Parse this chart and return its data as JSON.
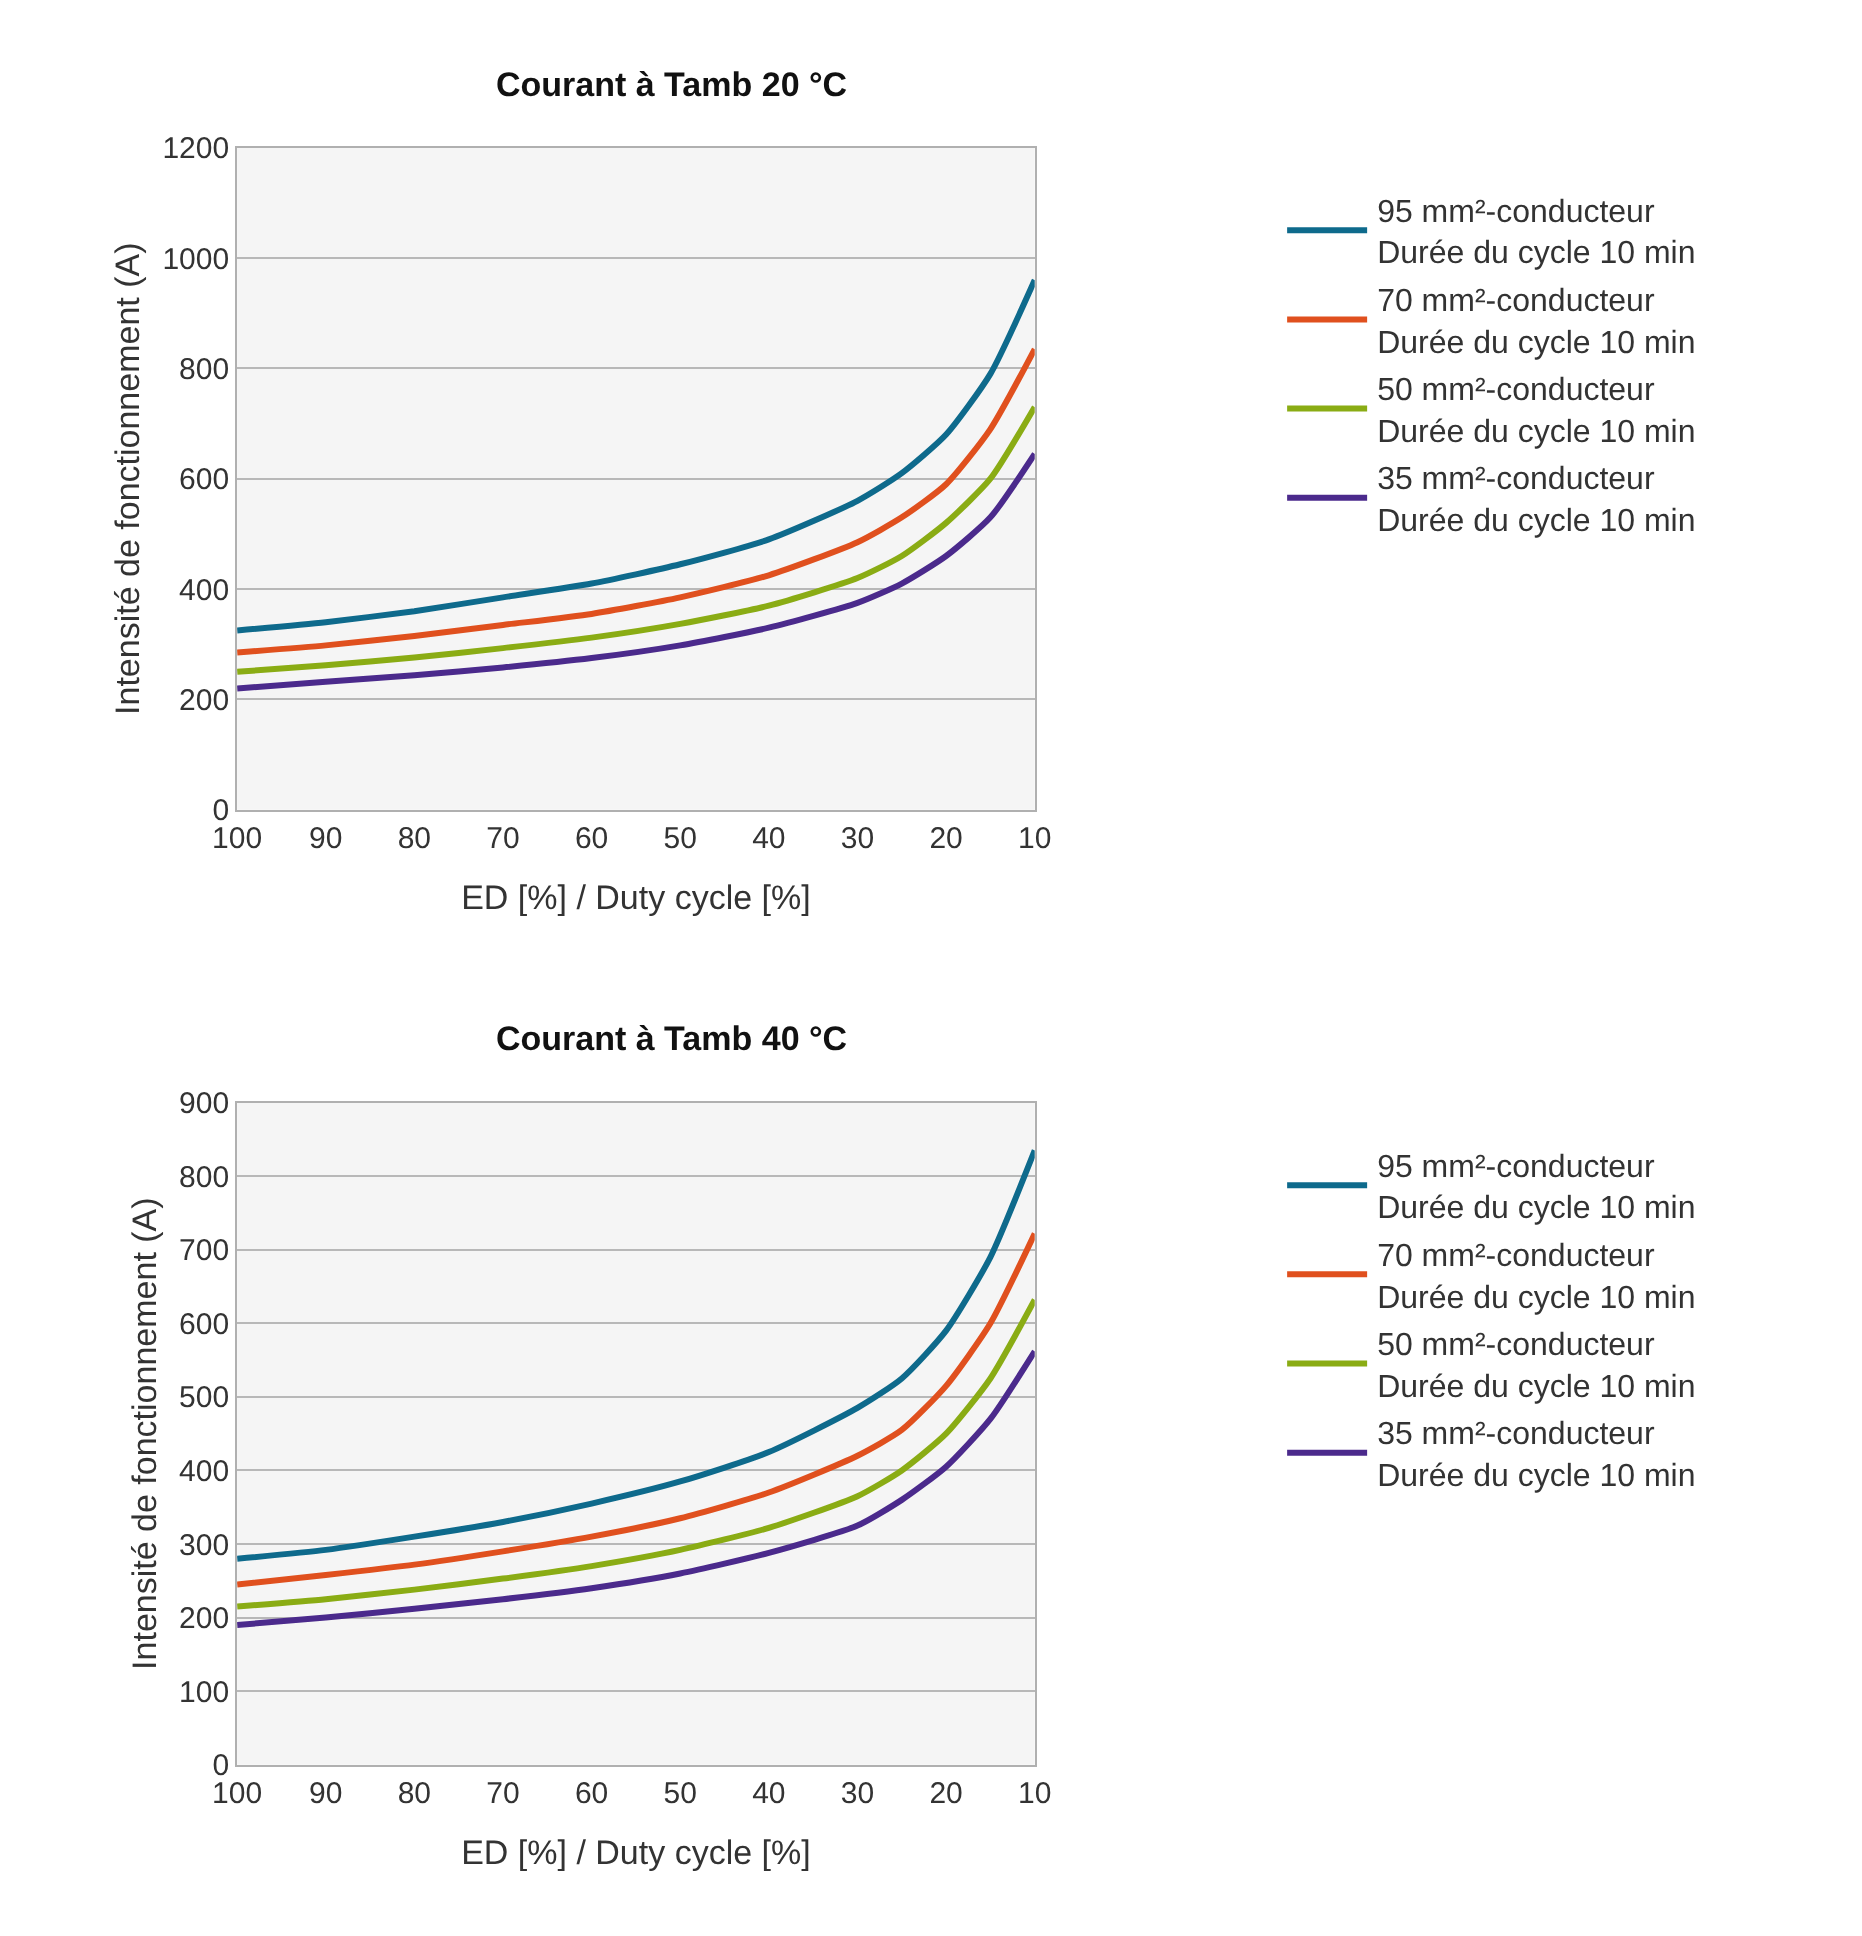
{
  "chart_data": [
    {
      "type": "line",
      "title": "Courant à Tamb 20 °C",
      "xlabel": "ED [%] / Duty cycle [%]",
      "ylabel": "Intensité de fonctionnement (A)",
      "x": [
        100,
        90,
        80,
        70,
        60,
        50,
        40,
        30,
        25,
        20,
        15,
        10
      ],
      "xlim": [
        100,
        10
      ],
      "xticks": [
        100,
        90,
        80,
        70,
        60,
        50,
        40,
        30,
        20,
        10
      ],
      "ylim": [
        0,
        1200
      ],
      "yticks": [
        0,
        200,
        400,
        600,
        800,
        1000,
        1200
      ],
      "grid": "y",
      "legend": "right",
      "marker": "none",
      "line_style": "solid",
      "series": [
        {
          "name": "95 mm²-conducteur\nDurée du cycle 10 min",
          "color": "#0e6a8c",
          "values": [
            325,
            340,
            360,
            385,
            410,
            445,
            490,
            560,
            610,
            680,
            790,
            960
          ]
        },
        {
          "name": "70 mm²-conducteur\nDurée du cycle 10 min",
          "color": "#e0501e",
          "values": [
            285,
            298,
            315,
            335,
            355,
            385,
            425,
            485,
            530,
            590,
            690,
            835
          ]
        },
        {
          "name": "50 mm²-conducteur\nDurée du cycle 10 min",
          "color": "#8aac14",
          "values": [
            250,
            262,
            276,
            293,
            312,
            337,
            370,
            420,
            460,
            520,
            600,
            730
          ]
        },
        {
          "name": "35 mm²-conducteur\nDurée du cycle 10 min",
          "color": "#4b2a8c",
          "values": [
            220,
            232,
            244,
            258,
            275,
            298,
            330,
            375,
            410,
            460,
            530,
            645
          ]
        }
      ]
    },
    {
      "type": "line",
      "title": "Courant à Tamb 40 °C",
      "xlabel": "ED [%] / Duty cycle [%]",
      "ylabel": "Intensité de fonctionnement (A)",
      "x": [
        100,
        90,
        80,
        70,
        60,
        50,
        40,
        30,
        25,
        20,
        15,
        10
      ],
      "xlim": [
        100,
        10
      ],
      "xticks": [
        100,
        90,
        80,
        70,
        60,
        50,
        40,
        30,
        20,
        10
      ],
      "ylim": [
        0,
        900
      ],
      "yticks": [
        0,
        100,
        200,
        300,
        400,
        500,
        600,
        700,
        800,
        900
      ],
      "grid": "y",
      "legend": "right",
      "marker": "none",
      "line_style": "solid",
      "series": [
        {
          "name": "95 mm²-conducteur\nDurée du cycle 10 min",
          "color": "#0e6a8c",
          "values": [
            280,
            292,
            310,
            330,
            355,
            385,
            425,
            485,
            525,
            590,
            690,
            835
          ]
        },
        {
          "name": "70 mm²-conducteur\nDurée du cycle 10 min",
          "color": "#e0501e",
          "values": [
            245,
            258,
            272,
            290,
            310,
            335,
            370,
            420,
            455,
            515,
            600,
            722
          ]
        },
        {
          "name": "50 mm²-conducteur\nDurée du cycle 10 min",
          "color": "#8aac14",
          "values": [
            215,
            225,
            238,
            253,
            270,
            292,
            322,
            365,
            400,
            450,
            525,
            632
          ]
        },
        {
          "name": "35 mm²-conducteur\nDurée du cycle 10 min",
          "color": "#4b2a8c",
          "values": [
            190,
            200,
            212,
            225,
            240,
            260,
            288,
            325,
            360,
            405,
            470,
            562
          ]
        }
      ]
    }
  ]
}
